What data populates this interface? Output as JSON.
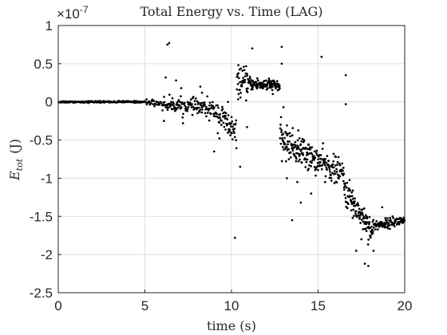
{
  "chart_data": {
    "type": "scatter",
    "title": "Total Energy vs. Time (LAG)",
    "xlabel": "time (s)",
    "ylabel_main": "E",
    "ylabel_sub": "tot",
    "ylabel_unit": "(J)",
    "exponent_prefix": "×10",
    "exponent_power": "-7",
    "x_ticks": [
      "0",
      "5",
      "10",
      "15",
      "20"
    ],
    "y_ticks": [
      "1",
      "0.5",
      "0",
      "-0.5",
      "-1",
      "-1.5",
      "-2",
      "-2.5"
    ],
    "xlim": [
      0,
      20
    ],
    "ylim": [
      -2.5,
      1
    ],
    "y_scale_factor": 1e-07,
    "grid": true,
    "marker_color": "#000000",
    "segments": [
      {
        "t_start": 0.0,
        "t_end": 5.0,
        "n": 150,
        "mean_start": 0.0,
        "mean_end": 0.0,
        "spread": 0.012
      },
      {
        "t_start": 5.0,
        "t_end": 6.0,
        "n": 30,
        "mean_start": 0.0,
        "mean_end": -0.02,
        "spread": 0.04
      },
      {
        "t_start": 6.0,
        "t_end": 8.0,
        "n": 90,
        "mean_start": -0.03,
        "mean_end": -0.06,
        "spread": 0.09
      },
      {
        "t_start": 8.0,
        "t_end": 9.2,
        "n": 55,
        "mean_start": -0.07,
        "mean_end": -0.12,
        "spread": 0.12
      },
      {
        "t_start": 9.2,
        "t_end": 10.3,
        "n": 60,
        "mean_start": -0.15,
        "mean_end": -0.45,
        "spread": 0.18
      },
      {
        "t_start": 10.3,
        "t_end": 11.0,
        "n": 45,
        "mean_start": 0.25,
        "mean_end": 0.25,
        "spread": 0.18
      },
      {
        "t_start": 11.0,
        "t_end": 12.8,
        "n": 120,
        "mean_start": 0.24,
        "mean_end": 0.21,
        "spread": 0.08
      },
      {
        "t_start": 12.8,
        "t_end": 14.5,
        "n": 120,
        "mean_start": -0.5,
        "mean_end": -0.7,
        "spread": 0.2
      },
      {
        "t_start": 14.5,
        "t_end": 16.5,
        "n": 120,
        "mean_start": -0.72,
        "mean_end": -0.95,
        "spread": 0.17
      },
      {
        "t_start": 16.5,
        "t_end": 18.2,
        "n": 110,
        "mean_start": -1.15,
        "mean_end": -1.72,
        "spread": 0.18
      },
      {
        "t_start": 18.2,
        "t_end": 20.0,
        "n": 110,
        "mean_start": -1.62,
        "mean_end": -1.55,
        "spread": 0.06
      }
    ],
    "outliers": [
      [
        6.3,
        0.75
      ],
      [
        6.4,
        0.77
      ],
      [
        6.2,
        0.32
      ],
      [
        6.8,
        0.28
      ],
      [
        7.1,
        0.18
      ],
      [
        8.2,
        0.2
      ],
      [
        7.2,
        -0.28
      ],
      [
        6.1,
        -0.25
      ],
      [
        8.3,
        0.12
      ],
      [
        9.0,
        -0.65
      ],
      [
        9.3,
        -0.48
      ],
      [
        10.2,
        -1.78
      ],
      [
        10.5,
        -0.85
      ],
      [
        10.9,
        -0.33
      ],
      [
        10.4,
        0.48
      ],
      [
        11.2,
        0.7
      ],
      [
        12.0,
        0.2
      ],
      [
        12.9,
        0.72
      ],
      [
        12.9,
        0.5
      ],
      [
        13.0,
        -0.07
      ],
      [
        13.5,
        -1.55
      ],
      [
        14.0,
        -1.32
      ],
      [
        13.8,
        -1.05
      ],
      [
        15.2,
        0.59
      ],
      [
        16.6,
        0.35
      ],
      [
        16.6,
        -0.03
      ],
      [
        16.5,
        -1.12
      ],
      [
        17.0,
        -1.52
      ],
      [
        17.7,
        -2.12
      ],
      [
        17.9,
        -2.15
      ],
      [
        17.2,
        -1.95
      ],
      [
        18.2,
        -1.95
      ],
      [
        18.7,
        -1.38
      ],
      [
        19.3,
        -1.5
      ],
      [
        14.6,
        -1.2
      ],
      [
        15.4,
        -1.05
      ],
      [
        9.8,
        0.0
      ],
      [
        10.0,
        -0.2
      ],
      [
        13.2,
        -1.0
      ],
      [
        17.5,
        -1.8
      ]
    ]
  }
}
